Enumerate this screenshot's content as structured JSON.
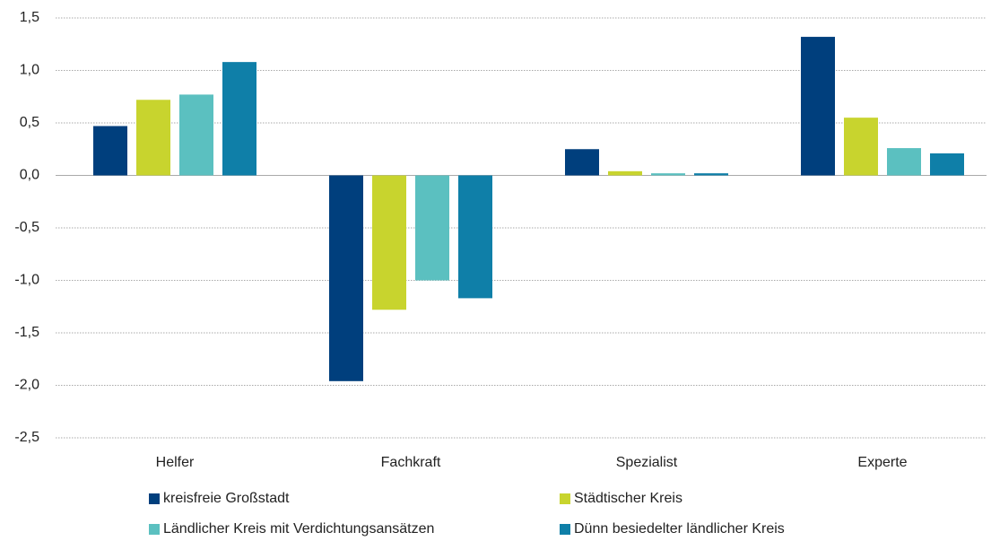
{
  "chart_data": {
    "type": "bar",
    "categories": [
      "Helfer",
      "Fachkraft",
      "Spezialist",
      "Experte"
    ],
    "series": [
      {
        "name": "kreisfreie Großstadt",
        "color": "#003f7d",
        "values": [
          0.47,
          -1.96,
          0.25,
          1.32
        ]
      },
      {
        "name": "Städtischer Kreis",
        "color": "#c8d42e",
        "values": [
          0.72,
          -1.28,
          0.04,
          0.55
        ]
      },
      {
        "name": "Ländlicher Kreis mit Verdichtungsansätzen",
        "color": "#5bc0c0",
        "values": [
          0.77,
          -1.0,
          0.02,
          0.26
        ]
      },
      {
        "name": "Dünn besiedelter ländlicher Kreis",
        "color": "#0f7fa8",
        "values": [
          1.08,
          -1.17,
          0.02,
          0.21
        ]
      }
    ],
    "ylim": [
      -2.5,
      1.5
    ],
    "yticks": [
      {
        "value": 1.5,
        "label": "1,5"
      },
      {
        "value": 1.0,
        "label": "1,0"
      },
      {
        "value": 0.5,
        "label": "0,5"
      },
      {
        "value": 0.0,
        "label": "0,0"
      },
      {
        "value": -0.5,
        "label": "-0,5"
      },
      {
        "value": -1.0,
        "label": "-1,0"
      },
      {
        "value": -1.5,
        "label": "-1,5"
      },
      {
        "value": -2.0,
        "label": "-2,0"
      },
      {
        "value": -2.5,
        "label": "-2,5"
      }
    ],
    "grid": true,
    "legend": "bottom"
  }
}
